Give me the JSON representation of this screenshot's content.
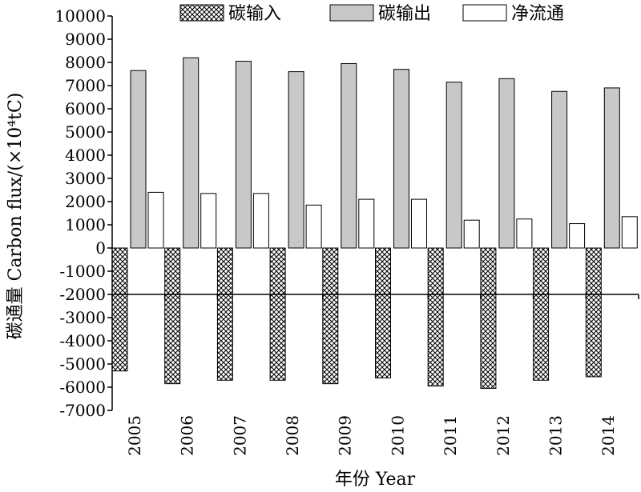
{
  "chart_data": {
    "type": "bar",
    "title": "",
    "xlabel": "年份 Year",
    "ylabel": "碳通量 Carbon flux/(×10⁴tC)",
    "ylim": [
      -7000,
      10000
    ],
    "yticks": [
      10000,
      9000,
      8000,
      7000,
      6000,
      5000,
      4000,
      3000,
      2000,
      1000,
      0,
      -1000,
      -2000,
      -3000,
      -4000,
      -5000,
      -6000,
      -7000
    ],
    "categories": [
      "2005",
      "2006",
      "2007",
      "2008",
      "2009",
      "2010",
      "2011",
      "2012",
      "2013",
      "2014"
    ],
    "category_axis_at": -2000,
    "legend_position": "top",
    "grid": false,
    "series": [
      {
        "name": "碳输入",
        "pattern": "crosshatch",
        "fill": "#ffffff",
        "values": [
          -5300,
          -5850,
          -5700,
          -5700,
          -5850,
          -5600,
          -5950,
          -6050,
          -5700,
          -5550
        ]
      },
      {
        "name": "碳输出",
        "pattern": "solid",
        "fill": "#c8c8c8",
        "values": [
          7650,
          8200,
          8050,
          7600,
          7950,
          7700,
          7150,
          7300,
          6750,
          6900
        ]
      },
      {
        "name": "净流通",
        "pattern": "solid",
        "fill": "#ffffff",
        "values": [
          2400,
          2350,
          2350,
          1850,
          2100,
          2100,
          1200,
          1250,
          1050,
          1350
        ]
      }
    ]
  }
}
